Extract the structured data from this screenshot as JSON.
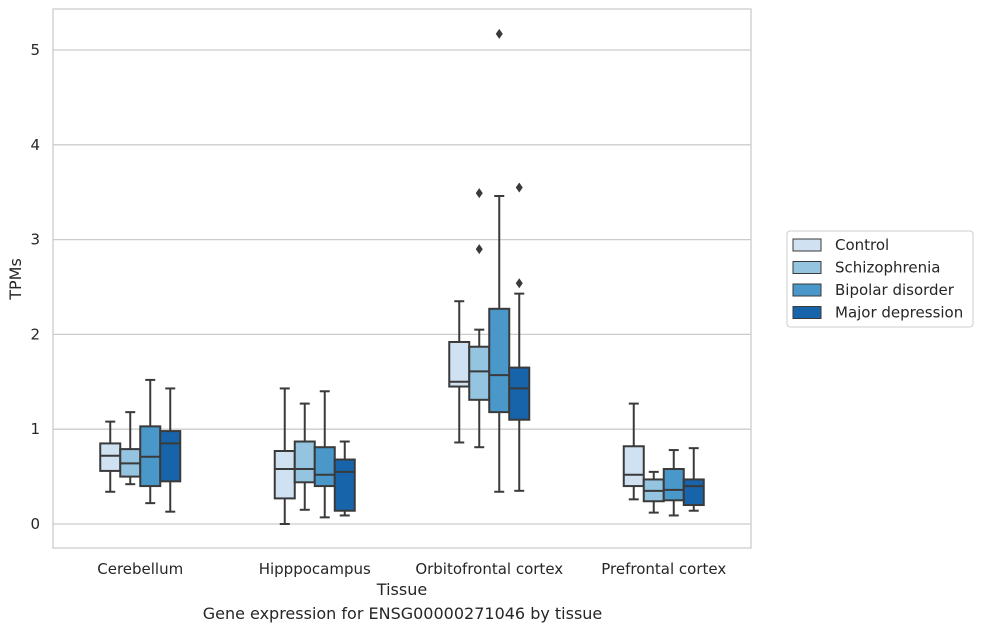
{
  "chart_data": {
    "type": "box",
    "caption": "Gene expression for ENSG00000271046 by tissue",
    "xlabel": "Tissue",
    "ylabel": "TPMs",
    "ylim": [
      -0.25,
      5.42
    ],
    "yticks": [
      0,
      1,
      2,
      3,
      4,
      5
    ],
    "grid": "horizontal",
    "legend_position": "right",
    "categories": [
      "Cerebellum",
      "Hipppocampus",
      "Orbitofrontal cortex",
      "Prefrontal cortex"
    ],
    "series": [
      {
        "name": "Control",
        "color": "#d0e1f2",
        "boxes": [
          {
            "whislo": 0.34,
            "q1": 0.56,
            "med": 0.72,
            "q3": 0.85,
            "whishi": 1.08,
            "fliers": []
          },
          {
            "whislo": 0.0,
            "q1": 0.27,
            "med": 0.58,
            "q3": 0.77,
            "whishi": 1.43,
            "fliers": []
          },
          {
            "whislo": 0.86,
            "q1": 1.45,
            "med": 1.5,
            "q3": 1.92,
            "whishi": 2.35,
            "fliers": []
          },
          {
            "whislo": 0.26,
            "q1": 0.4,
            "med": 0.52,
            "q3": 0.82,
            "whishi": 1.27,
            "fliers": []
          }
        ]
      },
      {
        "name": "Schizophrenia",
        "color": "#94c4df",
        "boxes": [
          {
            "whislo": 0.42,
            "q1": 0.5,
            "med": 0.64,
            "q3": 0.79,
            "whishi": 1.18,
            "fliers": []
          },
          {
            "whislo": 0.15,
            "q1": 0.44,
            "med": 0.58,
            "q3": 0.87,
            "whishi": 1.27,
            "fliers": []
          },
          {
            "whislo": 0.81,
            "q1": 1.31,
            "med": 1.61,
            "q3": 1.87,
            "whishi": 2.05,
            "fliers": [
              2.9,
              3.49
            ]
          },
          {
            "whislo": 0.12,
            "q1": 0.24,
            "med": 0.35,
            "q3": 0.47,
            "whishi": 0.55,
            "fliers": []
          }
        ]
      },
      {
        "name": "Bipolar disorder",
        "color": "#4a98c9",
        "boxes": [
          {
            "whislo": 0.22,
            "q1": 0.4,
            "med": 0.71,
            "q3": 1.03,
            "whishi": 1.52,
            "fliers": []
          },
          {
            "whislo": 0.07,
            "q1": 0.4,
            "med": 0.52,
            "q3": 0.81,
            "whishi": 1.4,
            "fliers": []
          },
          {
            "whislo": 0.34,
            "q1": 1.18,
            "med": 1.57,
            "q3": 2.27,
            "whishi": 3.46,
            "fliers": [
              5.17
            ]
          },
          {
            "whislo": 0.09,
            "q1": 0.25,
            "med": 0.36,
            "q3": 0.58,
            "whishi": 0.78,
            "fliers": []
          }
        ]
      },
      {
        "name": "Major depression",
        "color": "#1764ab",
        "boxes": [
          {
            "whislo": 0.13,
            "q1": 0.45,
            "med": 0.85,
            "q3": 0.98,
            "whishi": 1.43,
            "fliers": []
          },
          {
            "whislo": 0.09,
            "q1": 0.14,
            "med": 0.55,
            "q3": 0.68,
            "whishi": 0.87,
            "fliers": []
          },
          {
            "whislo": 0.35,
            "q1": 1.1,
            "med": 1.43,
            "q3": 1.65,
            "whishi": 2.43,
            "fliers": [
              2.54,
              3.55
            ]
          },
          {
            "whislo": 0.14,
            "q1": 0.2,
            "med": 0.4,
            "q3": 0.47,
            "whishi": 0.8,
            "fliers": []
          }
        ]
      }
    ]
  }
}
